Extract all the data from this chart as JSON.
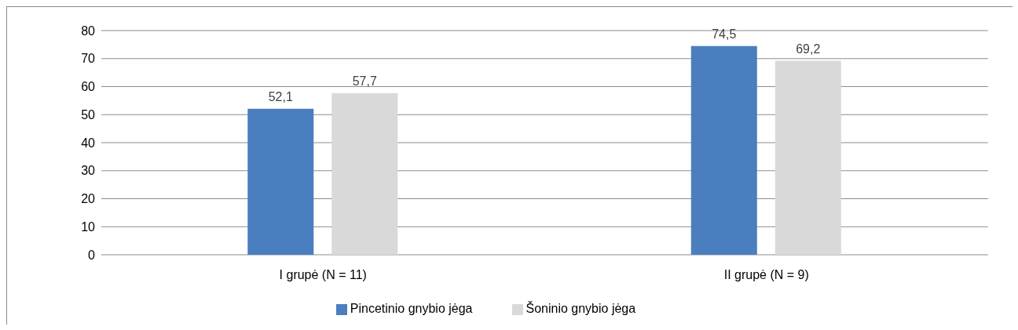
{
  "chart_data": {
    "type": "bar",
    "categories": [
      "I grupė (N = 11)",
      "II grupė (N = 9)"
    ],
    "series": [
      {
        "name": "Pincetinio gnybio jėga",
        "color": "#4a7ebf",
        "values": [
          52.1,
          74.5
        ],
        "value_labels": [
          "52,1",
          "74,5"
        ]
      },
      {
        "name": "Šoninio gnybio jėga",
        "color": "#d9d9d9",
        "values": [
          57.7,
          69.2
        ],
        "value_labels": [
          "57,7",
          "69,2"
        ]
      }
    ],
    "ylim": [
      0,
      80
    ],
    "yticks": [
      0,
      10,
      20,
      30,
      40,
      50,
      60,
      70,
      80
    ],
    "grid": "y",
    "legend": "bottom"
  }
}
